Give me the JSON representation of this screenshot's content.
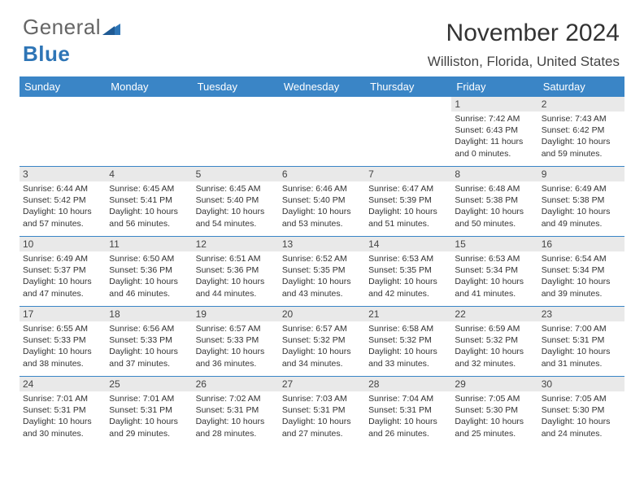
{
  "logo": {
    "text1": "General",
    "text2": "Blue"
  },
  "title": "November 2024",
  "location": "Williston, Florida, United States",
  "colors": {
    "header_bg": "#3a85c6",
    "header_text": "#ffffff",
    "daynum_bg": "#e9e9e9",
    "border": "#3a85c6",
    "logo_blue": "#2e75b6",
    "text": "#333333"
  },
  "weekdays": [
    "Sunday",
    "Monday",
    "Tuesday",
    "Wednesday",
    "Thursday",
    "Friday",
    "Saturday"
  ],
  "weeks": [
    [
      {
        "n": "",
        "sr": "",
        "ss": "",
        "dl": ""
      },
      {
        "n": "",
        "sr": "",
        "ss": "",
        "dl": ""
      },
      {
        "n": "",
        "sr": "",
        "ss": "",
        "dl": ""
      },
      {
        "n": "",
        "sr": "",
        "ss": "",
        "dl": ""
      },
      {
        "n": "",
        "sr": "",
        "ss": "",
        "dl": ""
      },
      {
        "n": "1",
        "sr": "Sunrise: 7:42 AM",
        "ss": "Sunset: 6:43 PM",
        "dl": "Daylight: 11 hours and 0 minutes."
      },
      {
        "n": "2",
        "sr": "Sunrise: 7:43 AM",
        "ss": "Sunset: 6:42 PM",
        "dl": "Daylight: 10 hours and 59 minutes."
      }
    ],
    [
      {
        "n": "3",
        "sr": "Sunrise: 6:44 AM",
        "ss": "Sunset: 5:42 PM",
        "dl": "Daylight: 10 hours and 57 minutes."
      },
      {
        "n": "4",
        "sr": "Sunrise: 6:45 AM",
        "ss": "Sunset: 5:41 PM",
        "dl": "Daylight: 10 hours and 56 minutes."
      },
      {
        "n": "5",
        "sr": "Sunrise: 6:45 AM",
        "ss": "Sunset: 5:40 PM",
        "dl": "Daylight: 10 hours and 54 minutes."
      },
      {
        "n": "6",
        "sr": "Sunrise: 6:46 AM",
        "ss": "Sunset: 5:40 PM",
        "dl": "Daylight: 10 hours and 53 minutes."
      },
      {
        "n": "7",
        "sr": "Sunrise: 6:47 AM",
        "ss": "Sunset: 5:39 PM",
        "dl": "Daylight: 10 hours and 51 minutes."
      },
      {
        "n": "8",
        "sr": "Sunrise: 6:48 AM",
        "ss": "Sunset: 5:38 PM",
        "dl": "Daylight: 10 hours and 50 minutes."
      },
      {
        "n": "9",
        "sr": "Sunrise: 6:49 AM",
        "ss": "Sunset: 5:38 PM",
        "dl": "Daylight: 10 hours and 49 minutes."
      }
    ],
    [
      {
        "n": "10",
        "sr": "Sunrise: 6:49 AM",
        "ss": "Sunset: 5:37 PM",
        "dl": "Daylight: 10 hours and 47 minutes."
      },
      {
        "n": "11",
        "sr": "Sunrise: 6:50 AM",
        "ss": "Sunset: 5:36 PM",
        "dl": "Daylight: 10 hours and 46 minutes."
      },
      {
        "n": "12",
        "sr": "Sunrise: 6:51 AM",
        "ss": "Sunset: 5:36 PM",
        "dl": "Daylight: 10 hours and 44 minutes."
      },
      {
        "n": "13",
        "sr": "Sunrise: 6:52 AM",
        "ss": "Sunset: 5:35 PM",
        "dl": "Daylight: 10 hours and 43 minutes."
      },
      {
        "n": "14",
        "sr": "Sunrise: 6:53 AM",
        "ss": "Sunset: 5:35 PM",
        "dl": "Daylight: 10 hours and 42 minutes."
      },
      {
        "n": "15",
        "sr": "Sunrise: 6:53 AM",
        "ss": "Sunset: 5:34 PM",
        "dl": "Daylight: 10 hours and 41 minutes."
      },
      {
        "n": "16",
        "sr": "Sunrise: 6:54 AM",
        "ss": "Sunset: 5:34 PM",
        "dl": "Daylight: 10 hours and 39 minutes."
      }
    ],
    [
      {
        "n": "17",
        "sr": "Sunrise: 6:55 AM",
        "ss": "Sunset: 5:33 PM",
        "dl": "Daylight: 10 hours and 38 minutes."
      },
      {
        "n": "18",
        "sr": "Sunrise: 6:56 AM",
        "ss": "Sunset: 5:33 PM",
        "dl": "Daylight: 10 hours and 37 minutes."
      },
      {
        "n": "19",
        "sr": "Sunrise: 6:57 AM",
        "ss": "Sunset: 5:33 PM",
        "dl": "Daylight: 10 hours and 36 minutes."
      },
      {
        "n": "20",
        "sr": "Sunrise: 6:57 AM",
        "ss": "Sunset: 5:32 PM",
        "dl": "Daylight: 10 hours and 34 minutes."
      },
      {
        "n": "21",
        "sr": "Sunrise: 6:58 AM",
        "ss": "Sunset: 5:32 PM",
        "dl": "Daylight: 10 hours and 33 minutes."
      },
      {
        "n": "22",
        "sr": "Sunrise: 6:59 AM",
        "ss": "Sunset: 5:32 PM",
        "dl": "Daylight: 10 hours and 32 minutes."
      },
      {
        "n": "23",
        "sr": "Sunrise: 7:00 AM",
        "ss": "Sunset: 5:31 PM",
        "dl": "Daylight: 10 hours and 31 minutes."
      }
    ],
    [
      {
        "n": "24",
        "sr": "Sunrise: 7:01 AM",
        "ss": "Sunset: 5:31 PM",
        "dl": "Daylight: 10 hours and 30 minutes."
      },
      {
        "n": "25",
        "sr": "Sunrise: 7:01 AM",
        "ss": "Sunset: 5:31 PM",
        "dl": "Daylight: 10 hours and 29 minutes."
      },
      {
        "n": "26",
        "sr": "Sunrise: 7:02 AM",
        "ss": "Sunset: 5:31 PM",
        "dl": "Daylight: 10 hours and 28 minutes."
      },
      {
        "n": "27",
        "sr": "Sunrise: 7:03 AM",
        "ss": "Sunset: 5:31 PM",
        "dl": "Daylight: 10 hours and 27 minutes."
      },
      {
        "n": "28",
        "sr": "Sunrise: 7:04 AM",
        "ss": "Sunset: 5:31 PM",
        "dl": "Daylight: 10 hours and 26 minutes."
      },
      {
        "n": "29",
        "sr": "Sunrise: 7:05 AM",
        "ss": "Sunset: 5:30 PM",
        "dl": "Daylight: 10 hours and 25 minutes."
      },
      {
        "n": "30",
        "sr": "Sunrise: 7:05 AM",
        "ss": "Sunset: 5:30 PM",
        "dl": "Daylight: 10 hours and 24 minutes."
      }
    ]
  ]
}
